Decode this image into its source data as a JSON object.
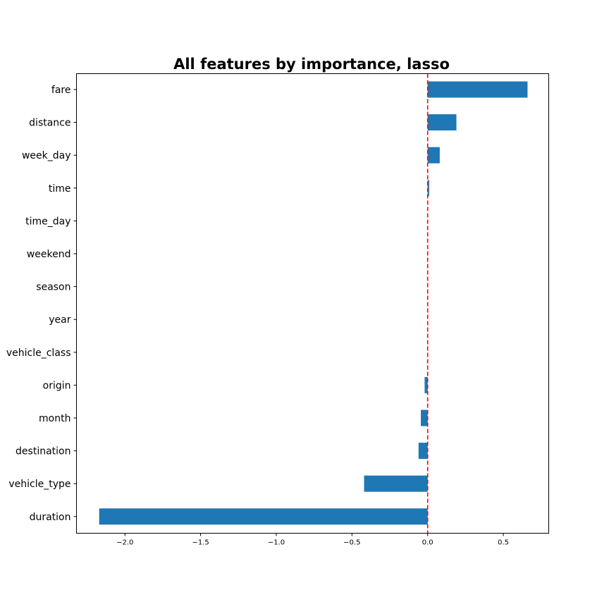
{
  "chart_data": {
    "type": "bar",
    "orientation": "horizontal",
    "title": "All features by importance, lasso",
    "xlabel": "",
    "ylabel": "",
    "categories": [
      "fare",
      "distance",
      "week_day",
      "time",
      "time_day",
      "weekend",
      "season",
      "year",
      "vehicle_class",
      "origin",
      "month",
      "destination",
      "vehicle_type",
      "duration"
    ],
    "values": [
      0.66,
      0.19,
      0.08,
      0.01,
      0,
      0,
      0,
      0,
      0,
      -0.02,
      -0.045,
      -0.06,
      -0.42,
      -2.17
    ],
    "xlim": [
      -2.32,
      0.8
    ],
    "xticks": [
      -2.0,
      -1.5,
      -1.0,
      -0.5,
      0.0,
      0.5
    ],
    "xtick_labels": [
      "−2.0",
      "−1.5",
      "−1.0",
      "−0.5",
      "0.0",
      "0.5"
    ],
    "reference_line": {
      "x": 0.0,
      "style": "dashed",
      "color": "#ff0000"
    },
    "bar_color": "#1f77b4",
    "grid": false,
    "legend": "none"
  }
}
